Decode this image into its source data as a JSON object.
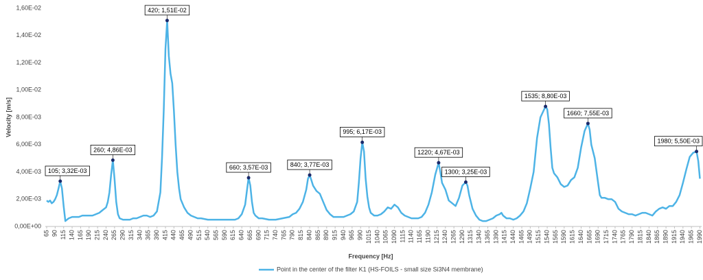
{
  "chart_data": {
    "type": "line",
    "x_label": "Frequency [Hz]",
    "y_label": "Velocity [m/s]",
    "x": [
      65,
      70,
      75,
      80,
      85,
      90,
      95,
      100,
      105,
      110,
      115,
      120,
      125,
      130,
      140,
      150,
      160,
      170,
      180,
      190,
      200,
      210,
      220,
      230,
      240,
      245,
      250,
      255,
      260,
      265,
      270,
      275,
      280,
      290,
      300,
      310,
      320,
      330,
      340,
      350,
      360,
      370,
      380,
      390,
      400,
      405,
      410,
      415,
      420,
      425,
      430,
      435,
      440,
      445,
      450,
      455,
      460,
      470,
      480,
      490,
      500,
      510,
      520,
      540,
      560,
      580,
      600,
      620,
      630,
      640,
      650,
      655,
      660,
      665,
      670,
      675,
      680,
      690,
      700,
      720,
      740,
      760,
      780,
      790,
      800,
      810,
      820,
      830,
      835,
      840,
      845,
      850,
      860,
      870,
      880,
      890,
      900,
      910,
      920,
      940,
      960,
      970,
      980,
      985,
      990,
      995,
      1000,
      1005,
      1010,
      1015,
      1020,
      1030,
      1040,
      1050,
      1060,
      1070,
      1080,
      1090,
      1100,
      1110,
      1120,
      1130,
      1140,
      1150,
      1160,
      1170,
      1180,
      1190,
      1200,
      1210,
      1220,
      1225,
      1230,
      1240,
      1250,
      1260,
      1270,
      1280,
      1290,
      1300,
      1305,
      1310,
      1320,
      1330,
      1340,
      1350,
      1360,
      1370,
      1380,
      1390,
      1400,
      1405,
      1410,
      1420,
      1430,
      1440,
      1450,
      1460,
      1470,
      1480,
      1490,
      1500,
      1510,
      1520,
      1535,
      1540,
      1545,
      1550,
      1555,
      1560,
      1570,
      1580,
      1590,
      1600,
      1610,
      1620,
      1630,
      1640,
      1650,
      1660,
      1665,
      1670,
      1680,
      1690,
      1695,
      1700,
      1710,
      1720,
      1730,
      1740,
      1750,
      1760,
      1770,
      1780,
      1790,
      1800,
      1810,
      1820,
      1830,
      1840,
      1850,
      1860,
      1870,
      1880,
      1890,
      1900,
      1910,
      1920,
      1930,
      1940,
      1950,
      1960,
      1970,
      1980,
      1985,
      1990
    ],
    "series": [
      {
        "name": "Point in the center of the filter K1 (HS-FOILS - small size Si3N4 membrane)",
        "color": "#4db3e6",
        "values": [
          0.0019,
          0.0018,
          0.0019,
          0.0017,
          0.0018,
          0.002,
          0.0023,
          0.0028,
          0.00332,
          0.0028,
          0.0015,
          0.0004,
          0.0005,
          0.0006,
          0.0007,
          0.0007,
          0.0007,
          0.0008,
          0.0008,
          0.0008,
          0.0008,
          0.0009,
          0.001,
          0.0012,
          0.0014,
          0.0018,
          0.0025,
          0.0038,
          0.00486,
          0.0035,
          0.0018,
          0.0009,
          0.0006,
          0.0005,
          0.0005,
          0.0005,
          0.0006,
          0.0006,
          0.0007,
          0.0008,
          0.0008,
          0.0007,
          0.0008,
          0.0011,
          0.0025,
          0.005,
          0.0085,
          0.013,
          0.0151,
          0.0125,
          0.0112,
          0.0105,
          0.0085,
          0.006,
          0.004,
          0.0028,
          0.002,
          0.0014,
          0.001,
          0.0008,
          0.0007,
          0.0006,
          0.0006,
          0.0005,
          0.0005,
          0.0005,
          0.0005,
          0.0005,
          0.0006,
          0.0009,
          0.0016,
          0.0026,
          0.00357,
          0.003,
          0.0018,
          0.001,
          0.0008,
          0.0006,
          0.0006,
          0.0005,
          0.0005,
          0.0006,
          0.0007,
          0.0009,
          0.001,
          0.0013,
          0.0018,
          0.0027,
          0.0035,
          0.00377,
          0.0034,
          0.003,
          0.0026,
          0.0024,
          0.0018,
          0.0012,
          0.0009,
          0.0007,
          0.0007,
          0.0007,
          0.0009,
          0.0011,
          0.0018,
          0.0032,
          0.005,
          0.00617,
          0.0055,
          0.0035,
          0.0022,
          0.0014,
          0.001,
          0.0008,
          0.0008,
          0.0009,
          0.0011,
          0.0014,
          0.0013,
          0.0016,
          0.0014,
          0.001,
          0.0008,
          0.0007,
          0.0006,
          0.0006,
          0.0006,
          0.0007,
          0.001,
          0.0016,
          0.0025,
          0.0038,
          0.00467,
          0.004,
          0.0032,
          0.0027,
          0.0019,
          0.0017,
          0.0015,
          0.0021,
          0.003,
          0.00325,
          0.003,
          0.0023,
          0.0013,
          0.0008,
          0.0005,
          0.0004,
          0.0004,
          0.0005,
          0.0006,
          0.0008,
          0.0009,
          0.001,
          0.0008,
          0.0006,
          0.0006,
          0.0005,
          0.0006,
          0.0008,
          0.0011,
          0.0017,
          0.0028,
          0.004,
          0.0065,
          0.008,
          0.0088,
          0.0086,
          0.0075,
          0.0058,
          0.0043,
          0.0039,
          0.0036,
          0.0031,
          0.0029,
          0.003,
          0.0034,
          0.0036,
          0.0043,
          0.0058,
          0.007,
          0.00755,
          0.0071,
          0.006,
          0.005,
          0.0032,
          0.0023,
          0.0021,
          0.0021,
          0.002,
          0.002,
          0.0018,
          0.0013,
          0.0011,
          0.001,
          0.0009,
          0.0009,
          0.0008,
          0.0009,
          0.001,
          0.001,
          0.0009,
          0.0008,
          0.0011,
          0.0013,
          0.0014,
          0.0013,
          0.0015,
          0.0015,
          0.0018,
          0.0023,
          0.0032,
          0.0042,
          0.0051,
          0.0054,
          0.0055,
          0.0048,
          0.0035
        ]
      }
    ],
    "annotations": [
      {
        "x": 105,
        "y": 0.00332,
        "label": "105; 3,32E-03"
      },
      {
        "x": 260,
        "y": 0.00486,
        "label": "260; 4,86E-03"
      },
      {
        "x": 420,
        "y": 0.0151,
        "label": "420; 1,51E-02"
      },
      {
        "x": 660,
        "y": 0.00357,
        "label": "660; 3,57E-03"
      },
      {
        "x": 840,
        "y": 0.00377,
        "label": "840; 3,77E-03"
      },
      {
        "x": 995,
        "y": 0.00617,
        "label": "995; 6,17E-03"
      },
      {
        "x": 1220,
        "y": 0.00467,
        "label": "1220; 4,67E-03"
      },
      {
        "x": 1300,
        "y": 0.00325,
        "label": "1300; 3,25E-03"
      },
      {
        "x": 1535,
        "y": 0.0088,
        "label": "1535; 8,80E-03"
      },
      {
        "x": 1660,
        "y": 0.00755,
        "label": "1660; 7,55E-03"
      },
      {
        "x": 1980,
        "y": 0.0055,
        "label": "1980; 5,50E-03"
      }
    ],
    "marker_color": "#1a2a6c",
    "xlim": [
      61,
      1995
    ],
    "xticks": [
      65,
      90,
      115,
      140,
      165,
      190,
      215,
      240,
      265,
      290,
      315,
      340,
      365,
      390,
      415,
      440,
      465,
      490,
      515,
      540,
      565,
      590,
      615,
      640,
      665,
      690,
      715,
      740,
      765,
      790,
      815,
      840,
      865,
      890,
      915,
      940,
      965,
      990,
      1015,
      1040,
      1065,
      1090,
      1115,
      1140,
      1165,
      1190,
      1215,
      1240,
      1265,
      1290,
      1315,
      1340,
      1365,
      1390,
      1415,
      1440,
      1465,
      1490,
      1515,
      1540,
      1565,
      1590,
      1615,
      1640,
      1665,
      1690,
      1715,
      1740,
      1765,
      1790,
      1815,
      1840,
      1865,
      1890,
      1915,
      1940,
      1965,
      1990
    ],
    "ylim": [
      0,
      0.016
    ],
    "yticks": [
      {
        "value": 0,
        "label": "0,00E+00"
      },
      {
        "value": 0.002,
        "label": "2,00E-03"
      },
      {
        "value": 0.004,
        "label": "4,00E-03"
      },
      {
        "value": 0.006,
        "label": "6,00E-03"
      },
      {
        "value": 0.008,
        "label": "8,00E-03"
      },
      {
        "value": 0.01,
        "label": "1,00E-02"
      },
      {
        "value": 0.012,
        "label": "1,20E-02"
      },
      {
        "value": 0.014,
        "label": "1,40E-02"
      },
      {
        "value": 0.016,
        "label": "1,60E-02"
      }
    ],
    "grid": false,
    "legend": "bottom"
  }
}
